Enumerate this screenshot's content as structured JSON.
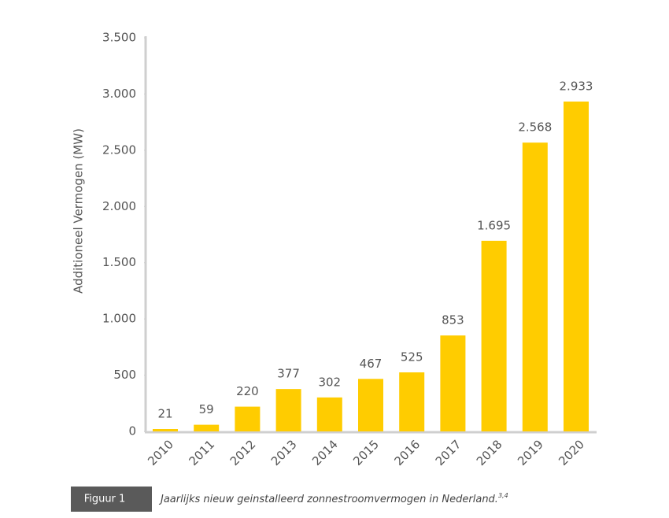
{
  "chart_data": {
    "type": "bar",
    "y_axis_label": "Additioneel Vermogen (MW)",
    "categories": [
      "2010",
      "2011",
      "2012",
      "2013",
      "2014",
      "2015",
      "2016",
      "2017",
      "2018",
      "2019",
      "2020"
    ],
    "values": [
      21,
      59,
      220,
      377,
      302,
      467,
      525,
      853,
      1695,
      2568,
      2933
    ],
    "value_labels": [
      "21",
      "59",
      "220",
      "377",
      "302",
      "467",
      "525",
      "853",
      "1.695",
      "2.568",
      "2.933"
    ],
    "color": "#ffcc00",
    "ylim": [
      0,
      3500
    ],
    "yticks": [
      0,
      500,
      {
        "value": 1000,
        "label": "1.000"
      },
      {
        "value": 1500,
        "label": "1.500"
      },
      {
        "value": 2000,
        "label": "2.000"
      },
      {
        "value": 2500,
        "label": "2.500"
      },
      {
        "value": 3000,
        "label": "3.000"
      },
      {
        "value": 3500,
        "label": "3.500"
      }
    ],
    "grid": false,
    "figure_label": "Figuur 1",
    "caption": "Jaarlijks nieuw geinstalleerd zonnestroomvermogen in Nederland.",
    "caption_refs": "3,4"
  }
}
